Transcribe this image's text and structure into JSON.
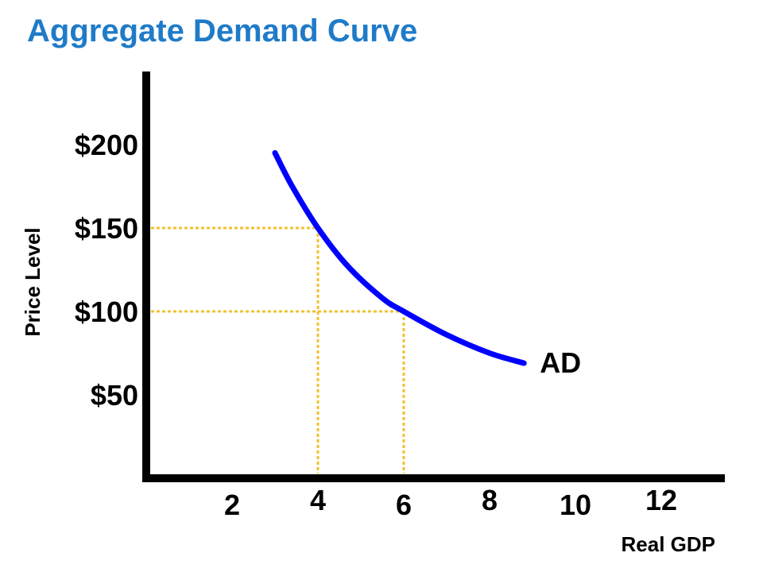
{
  "chart_data": {
    "type": "line",
    "title": "Aggregate Demand Curve",
    "xlabel": "Real GDP",
    "ylabel": "Price Level",
    "x_ticks": [
      "2",
      "4",
      "6",
      "8",
      "10",
      "12"
    ],
    "y_ticks": [
      "$50",
      "$100",
      "$150",
      "$200"
    ],
    "xlim": [
      0,
      13
    ],
    "ylim": [
      0,
      240
    ],
    "series": [
      {
        "name": "AD",
        "x": [
          3.0,
          3.4,
          4.0,
          4.7,
          5.5,
          6.0,
          7.0,
          8.0,
          8.8
        ],
        "y": [
          195,
          175,
          150,
          127,
          108,
          100,
          86,
          75,
          69
        ]
      }
    ],
    "reference_points": [
      {
        "x": 4,
        "y": 150
      },
      {
        "x": 6,
        "y": 100
      }
    ],
    "grid": false,
    "colors": {
      "title": "#1f7bc8",
      "curve": "#0000ff",
      "guides": "#f2c12e",
      "axes": "#000000"
    }
  }
}
